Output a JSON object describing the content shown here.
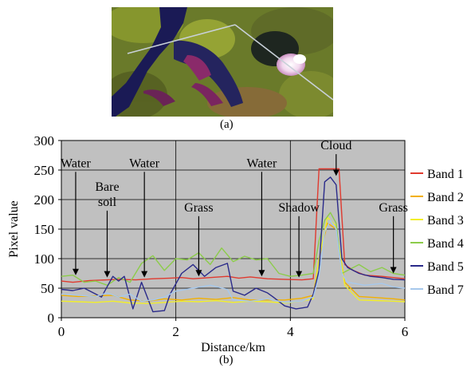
{
  "panel_a": {
    "caption": "(a)",
    "image": "satellite image with profile transect across water, vegetation and cloud"
  },
  "panel_b_caption": "(b)",
  "colors": {
    "plot_bg": "#c0c0c0",
    "band1": "#e03a2f",
    "band2": "#f2b000",
    "band3": "#f2ef2a",
    "band4": "#8ccc4a",
    "band5": "#2a2a8a",
    "band7": "#a6c8ec"
  },
  "chart_data": {
    "type": "line",
    "title": "",
    "xlabel": "Distance/km",
    "ylabel": "Pixel value",
    "xlim": [
      0,
      6
    ],
    "ylim": [
      0,
      300
    ],
    "xticks": [
      0,
      2,
      4,
      6
    ],
    "yticks": [
      0,
      50,
      100,
      150,
      200,
      250,
      300
    ],
    "grid": true,
    "legend_position": "right",
    "series": [
      {
        "name": "Band 1",
        "color": "#e03a2f",
        "x": [
          0,
          0.2,
          0.5,
          0.8,
          1.0,
          1.3,
          1.6,
          1.9,
          2.1,
          2.3,
          2.6,
          2.9,
          3.1,
          3.3,
          3.6,
          3.9,
          4.2,
          4.4,
          4.5,
          4.6,
          4.8,
          4.85,
          4.95,
          5.1,
          5.3,
          5.6,
          5.8,
          6.0
        ],
        "y": [
          62,
          60,
          63,
          64,
          65,
          64,
          66,
          67,
          68,
          66,
          68,
          70,
          67,
          69,
          66,
          65,
          64,
          66,
          252,
          252,
          252,
          252,
          90,
          80,
          72,
          70,
          68,
          66
        ]
      },
      {
        "name": "Band 2",
        "color": "#f2b000",
        "x": [
          0,
          0.3,
          0.6,
          0.9,
          1.2,
          1.5,
          1.8,
          2.1,
          2.4,
          2.7,
          3.0,
          3.3,
          3.6,
          3.9,
          4.2,
          4.4,
          4.5,
          4.65,
          4.8,
          4.95,
          5.2,
          5.5,
          5.8,
          6.0
        ],
        "y": [
          38,
          36,
          37,
          38,
          30,
          28,
          32,
          30,
          33,
          31,
          34,
          30,
          30,
          30,
          33,
          38,
          100,
          160,
          150,
          60,
          36,
          34,
          32,
          30
        ]
      },
      {
        "name": "Band 3",
        "color": "#f2ef2a",
        "x": [
          0,
          0.3,
          0.6,
          0.9,
          1.2,
          1.5,
          1.8,
          2.1,
          2.4,
          2.7,
          3.0,
          3.3,
          3.6,
          3.9,
          4.2,
          4.4,
          4.5,
          4.65,
          4.8,
          4.95,
          5.2,
          5.5,
          5.8,
          6.0
        ],
        "y": [
          28,
          27,
          26,
          28,
          25,
          24,
          26,
          28,
          27,
          29,
          26,
          28,
          27,
          25,
          28,
          32,
          100,
          170,
          155,
          55,
          30,
          29,
          28,
          27
        ]
      },
      {
        "name": "Band 4",
        "color": "#8ccc4a",
        "x": [
          0,
          0.2,
          0.4,
          0.6,
          0.8,
          1.0,
          1.2,
          1.4,
          1.6,
          1.8,
          2.0,
          2.2,
          2.4,
          2.6,
          2.8,
          3.0,
          3.2,
          3.4,
          3.6,
          3.8,
          4.0,
          4.2,
          4.4,
          4.5,
          4.6,
          4.7,
          4.8,
          4.9,
          5.0,
          5.2,
          5.4,
          5.6,
          5.8,
          6.0
        ],
        "y": [
          70,
          72,
          60,
          62,
          55,
          68,
          60,
          92,
          105,
          80,
          100,
          98,
          110,
          90,
          118,
          95,
          104,
          98,
          100,
          75,
          70,
          72,
          75,
          130,
          165,
          178,
          160,
          75,
          80,
          90,
          78,
          85,
          75,
          72
        ]
      },
      {
        "name": "Band 5",
        "color": "#2a2a8a",
        "x": [
          0,
          0.2,
          0.4,
          0.6,
          0.7,
          0.9,
          1.0,
          1.1,
          1.25,
          1.4,
          1.6,
          1.8,
          1.9,
          2.1,
          2.3,
          2.5,
          2.7,
          2.9,
          3.0,
          3.2,
          3.4,
          3.6,
          3.7,
          3.9,
          4.1,
          4.3,
          4.4,
          4.5,
          4.6,
          4.7,
          4.8,
          4.9,
          5.0,
          5.2,
          5.4,
          5.6,
          5.8,
          6.0
        ],
        "y": [
          48,
          46,
          50,
          40,
          35,
          70,
          62,
          70,
          15,
          60,
          10,
          12,
          40,
          75,
          90,
          70,
          85,
          92,
          45,
          38,
          50,
          42,
          35,
          20,
          15,
          18,
          40,
          80,
          230,
          238,
          225,
          100,
          85,
          75,
          70,
          68,
          65,
          64
        ]
      },
      {
        "name": "Band 7",
        "color": "#a6c8ec",
        "x": [
          0,
          0.3,
          0.6,
          0.8,
          1.0,
          1.2,
          1.4,
          1.6,
          1.8,
          2.0,
          2.3,
          2.6,
          2.9,
          3.0,
          3.3,
          3.6,
          3.9,
          4.2,
          4.4,
          4.5,
          4.6,
          4.7,
          4.8,
          4.9,
          5.0,
          5.3,
          5.6,
          5.8,
          6.0
        ],
        "y": [
          40,
          38,
          36,
          42,
          35,
          40,
          28,
          30,
          35,
          45,
          50,
          55,
          48,
          30,
          28,
          32,
          26,
          28,
          35,
          70,
          145,
          165,
          150,
          75,
          60,
          55,
          58,
          52,
          50
        ]
      }
    ],
    "annotations": [
      {
        "text": "Water",
        "x": 0.25,
        "y_text": 255,
        "arrow_to": 72
      },
      {
        "text": "Bare\nsoil",
        "x": 0.8,
        "y_text": 215,
        "arrow_to": 68
      },
      {
        "text": "Water",
        "x": 1.45,
        "y_text": 255,
        "arrow_to": 68
      },
      {
        "text": "Grass",
        "x": 2.4,
        "y_text": 180,
        "arrow_to": 70
      },
      {
        "text": "Water",
        "x": 3.5,
        "y_text": 255,
        "arrow_to": 70
      },
      {
        "text": "Shadow",
        "x": 4.15,
        "y_text": 180,
        "arrow_to": 68
      },
      {
        "text": "Cloud",
        "x": 4.8,
        "y_text": 285,
        "arrow_to": 240
      },
      {
        "text": "Grass",
        "x": 5.8,
        "y_text": 180,
        "arrow_to": 75
      }
    ]
  }
}
